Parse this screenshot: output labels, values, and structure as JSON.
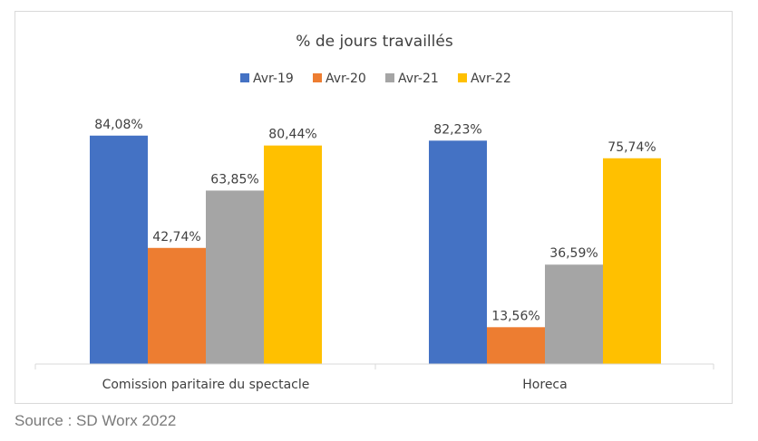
{
  "chart_data": {
    "type": "bar",
    "title": "% de jours travaillés",
    "categories": [
      "Comission paritaire du spectacle",
      "Horeca"
    ],
    "series": [
      {
        "name": "Avr-19",
        "color": "#4472C4",
        "values": [
          84.08,
          82.23
        ],
        "labels": [
          "84,08%",
          "82,23%"
        ]
      },
      {
        "name": "Avr-20",
        "color": "#ED7D31",
        "values": [
          42.74,
          13.56
        ],
        "labels": [
          "42,74%",
          "13,56%"
        ]
      },
      {
        "name": "Avr-21",
        "color": "#A5A5A5",
        "values": [
          63.85,
          36.59
        ],
        "labels": [
          "63,85%",
          "36,59%"
        ]
      },
      {
        "name": "Avr-22",
        "color": "#FFC000",
        "values": [
          80.44,
          75.74
        ],
        "labels": [
          "80,44%",
          "75,74%"
        ]
      }
    ],
    "ylim": [
      0,
      100
    ],
    "grid": false,
    "legend_position": "top"
  },
  "source": "Source : SD Worx 2022"
}
